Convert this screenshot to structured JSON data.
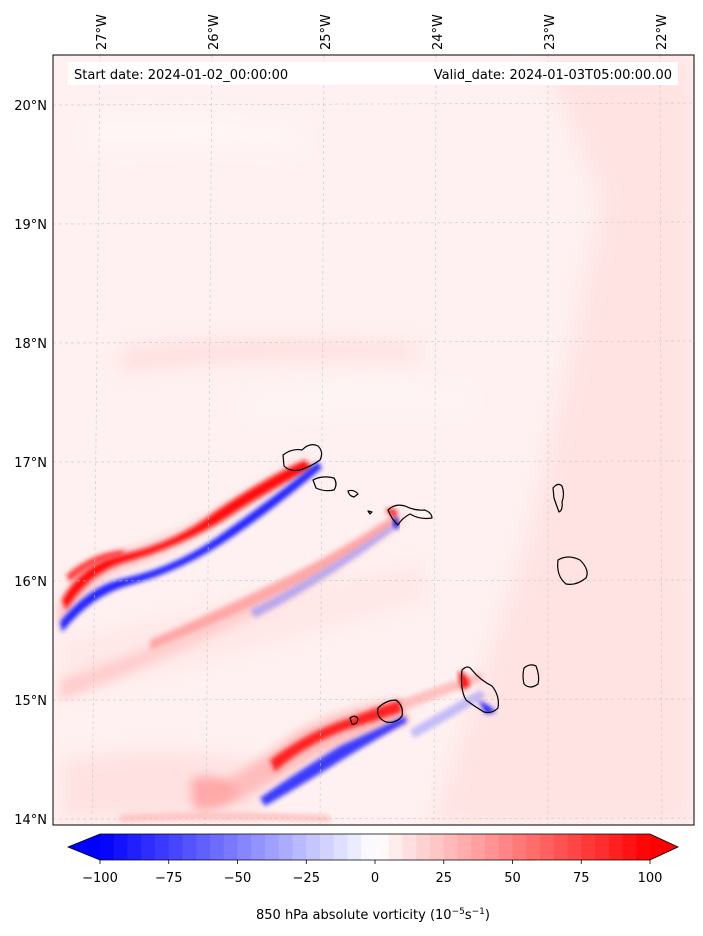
{
  "header": {
    "start_date": "Start date: 2024-01-02_00:00:00",
    "valid_date": "Valid_date: 2024-01-03T05:00:00.00"
  },
  "longitude_labels": [
    "27°W",
    "26°W",
    "25°W",
    "24°W",
    "23°W",
    "22°W"
  ],
  "latitude_labels": [
    "20°N",
    "19°N",
    "18°N",
    "17°N",
    "16°N",
    "15°N",
    "14°N"
  ],
  "colorbar": {
    "ticks": [
      "−100",
      "−75",
      "−50",
      "−25",
      "0",
      "25",
      "50",
      "75",
      "100"
    ],
    "min": -100,
    "max": 100,
    "colormap": "bwr",
    "label": "850 hPa absolute vorticity (10",
    "label_exp1": "−5",
    "label_mid": "s",
    "label_exp2": "−1",
    "label_end": ")"
  },
  "colors": {
    "positive": "#ff0000",
    "negative": "#0000ff",
    "neutral": "#ffffff",
    "coastline": "#000000"
  }
}
